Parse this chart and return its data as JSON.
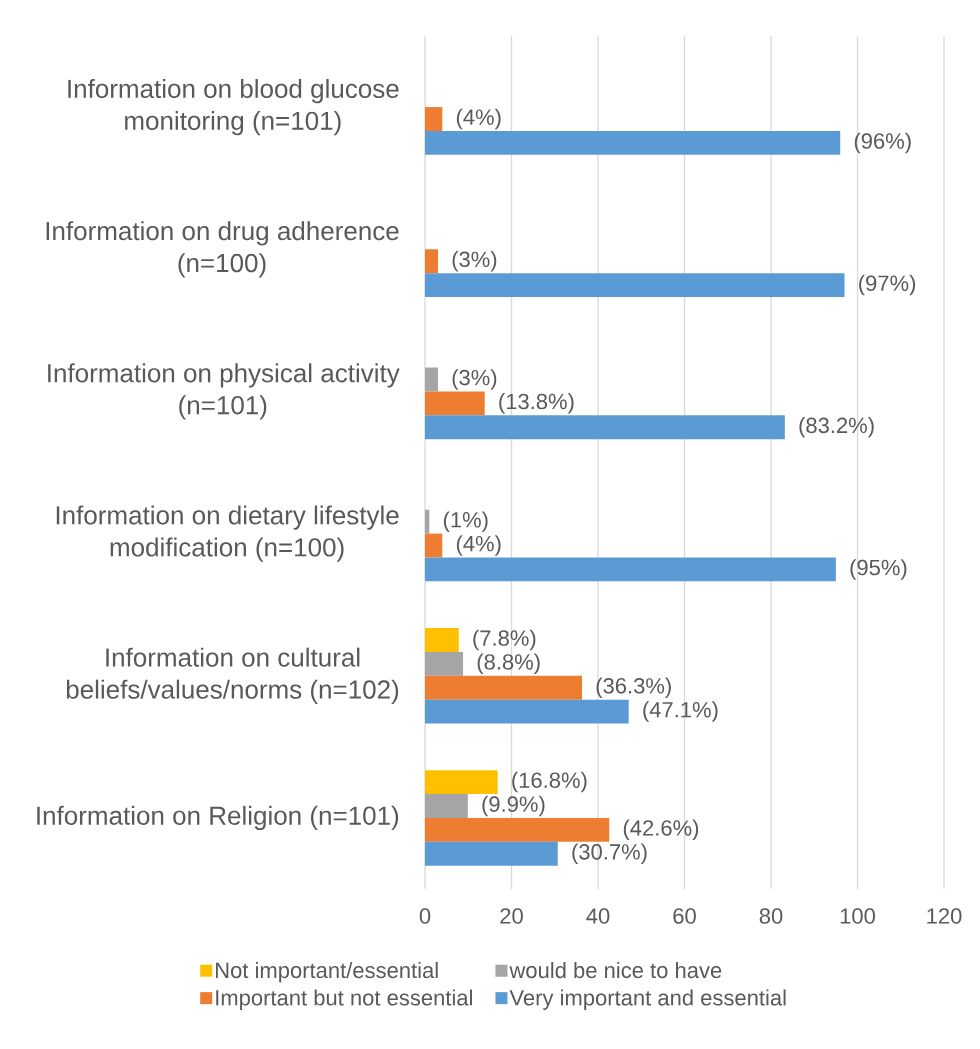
{
  "chart_data": {
    "type": "bar",
    "orientation": "horizontal",
    "categories": [
      "Information on blood glucose monitoring (n=101)",
      "Information on drug adherence (n=100)",
      "Information on physical activity (n=101)",
      "Information on dietary lifestyle modification (n=100)",
      "Information on cultural beliefs/values/norms (n=102)",
      "Information on Religion (n=101)"
    ],
    "series": [
      {
        "name": "Not important/essential",
        "color": "#ffc000",
        "values": [
          null,
          null,
          null,
          null,
          7.8,
          16.8
        ],
        "value_labels": [
          null,
          null,
          null,
          null,
          "(7.8%)",
          "(16.8%)"
        ]
      },
      {
        "name": "would be nice to have",
        "color": "#a5a5a5",
        "values": [
          null,
          null,
          3,
          1,
          8.8,
          9.9
        ],
        "value_labels": [
          null,
          null,
          "(3%)",
          "(1%)",
          "(8.8%)",
          "(9.9%)"
        ]
      },
      {
        "name": "Important but not essential",
        "color": "#ed7d31",
        "values": [
          4,
          3,
          13.8,
          4,
          36.3,
          42.6
        ],
        "value_labels": [
          "(4%)",
          "(3%)",
          "(13.8%)",
          "(4%)",
          "(36.3%)",
          "(42.6%)"
        ]
      },
      {
        "name": "Very important and essential",
        "color": "#5b9bd5",
        "values": [
          96,
          97,
          83.2,
          95,
          47.1,
          30.7
        ],
        "value_labels": [
          "(96%)",
          "(97%)",
          "(83.2%)",
          "(95%)",
          "(47.1%)",
          "(30.7%)"
        ]
      }
    ],
    "xlim": [
      0,
      120
    ],
    "xticks": [
      0,
      20,
      40,
      60,
      80,
      100,
      120
    ],
    "grid": "x",
    "legend": "bottom"
  }
}
